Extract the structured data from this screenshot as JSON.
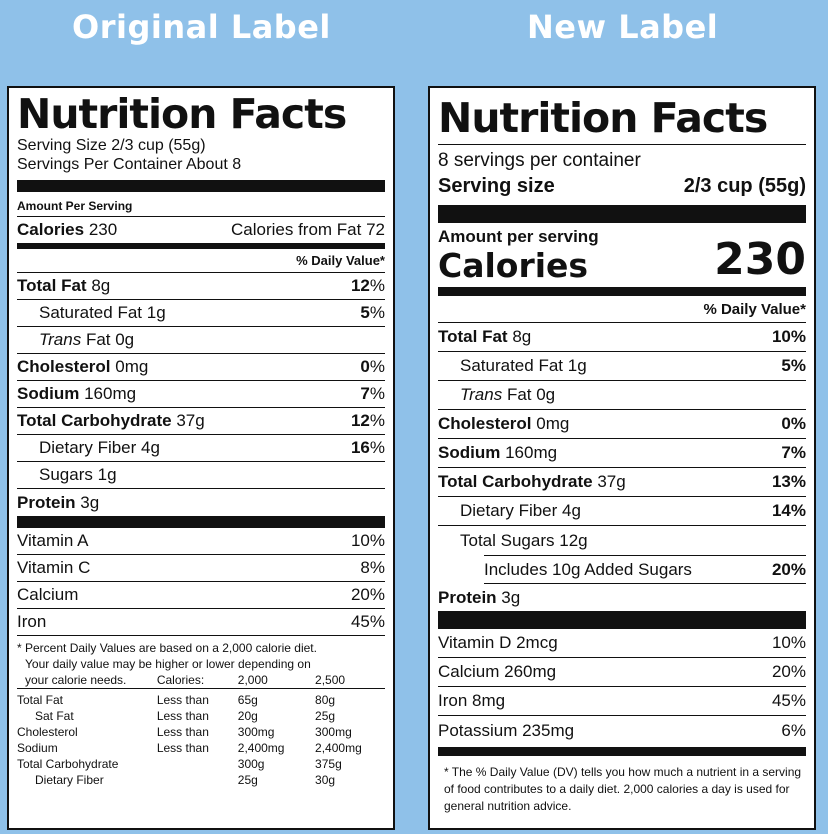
{
  "headings": {
    "original": "Original Label",
    "new": "New Label"
  },
  "original": {
    "title": "Nutrition Facts",
    "serving_size": "Serving Size 2/3 cup (55g)",
    "servings": "Servings Per Container About 8",
    "amount_per_serving": "Amount Per Serving",
    "calories_label": "Calories",
    "calories_value": "230",
    "calories_from_fat": "Calories from Fat 72",
    "dv_header": "% Daily Value*",
    "nutrients": [
      {
        "name": "Total Fat",
        "amount": "8g",
        "dv": "12",
        "pct": "%"
      },
      {
        "name": "Saturated Fat",
        "amount": "1g",
        "dv": "5",
        "pct": "%"
      },
      {
        "name": "Trans",
        "amount": "Fat 0g",
        "dv": "",
        "pct": ""
      },
      {
        "name": "Cholesterol",
        "amount": "0mg",
        "dv": "0",
        "pct": "%"
      },
      {
        "name": "Sodium",
        "amount": "160mg",
        "dv": "7",
        "pct": "%"
      },
      {
        "name": "Total Carbohydrate",
        "amount": "37g",
        "dv": "12",
        "pct": "%"
      },
      {
        "name": "Dietary Fiber",
        "amount": "4g",
        "dv": "16",
        "pct": "%"
      },
      {
        "name": "Sugars",
        "amount": "1g",
        "dv": "",
        "pct": ""
      },
      {
        "name": "Protein",
        "amount": "3g",
        "dv": "",
        "pct": ""
      }
    ],
    "vitamins": [
      {
        "name": "Vitamin A",
        "dv": "10%"
      },
      {
        "name": "Vitamin C",
        "dv": "8%"
      },
      {
        "name": "Calcium",
        "dv": "20%"
      },
      {
        "name": "Iron",
        "dv": "45%"
      }
    ],
    "footnote_1": "* Percent Daily Values are based on a 2,000 calorie diet.",
    "footnote_2": "Your daily value may be higher or lower depending on",
    "footnote_3": "your calorie needs.",
    "ref_header": [
      "Calories:",
      "2,000",
      "2,500"
    ],
    "ref_rows": [
      [
        "Total Fat",
        "Less than",
        "65g",
        "80g"
      ],
      [
        "Sat Fat",
        "Less than",
        "20g",
        "25g"
      ],
      [
        "Cholesterol",
        "Less than",
        "300mg",
        "300mg"
      ],
      [
        "Sodium",
        "Less than",
        "2,400mg",
        "2,400mg"
      ],
      [
        "Total Carbohydrate",
        "",
        "300g",
        "375g"
      ],
      [
        "Dietary Fiber",
        "",
        "25g",
        "30g"
      ]
    ]
  },
  "new": {
    "title": "Nutrition Facts",
    "servings": "8 servings per container",
    "serving_size_label": "Serving size",
    "serving_size_value": "2/3 cup (55g)",
    "amount_per_serving": "Amount per serving",
    "calories_label": "Calories",
    "calories_value": "230",
    "dv_header": "% Daily Value*",
    "nutrients": [
      {
        "name": "Total Fat",
        "amount": "8g",
        "dv": "10%"
      },
      {
        "name": "Saturated Fat",
        "amount": "1g",
        "dv": "5%"
      },
      {
        "name": "Trans",
        "amount": "Fat 0g",
        "dv": ""
      },
      {
        "name": "Cholesterol",
        "amount": "0mg",
        "dv": "0%"
      },
      {
        "name": "Sodium",
        "amount": "160mg",
        "dv": "7%"
      },
      {
        "name": "Total Carbohydrate",
        "amount": "37g",
        "dv": "13%"
      },
      {
        "name": "Dietary Fiber",
        "amount": "4g",
        "dv": "14%"
      },
      {
        "name": "Total Sugars",
        "amount": "12g",
        "dv": ""
      },
      {
        "name": "Includes 10g Added Sugars",
        "amount": "",
        "dv": "20%"
      },
      {
        "name": "Protein",
        "amount": "3g",
        "dv": ""
      }
    ],
    "vitamins": [
      {
        "name": "Vitamin D 2mcg",
        "dv": "10%"
      },
      {
        "name": "Calcium 260mg",
        "dv": "20%"
      },
      {
        "name": "Iron 8mg",
        "dv": "45%"
      },
      {
        "name": "Potassium 235mg",
        "dv": "6%"
      }
    ],
    "footnote": "* The % Daily Value (DV) tells you how much a nutrient in a serving of food contributes to a daily diet. 2,000 calories a day is used for general nutrition advice."
  }
}
